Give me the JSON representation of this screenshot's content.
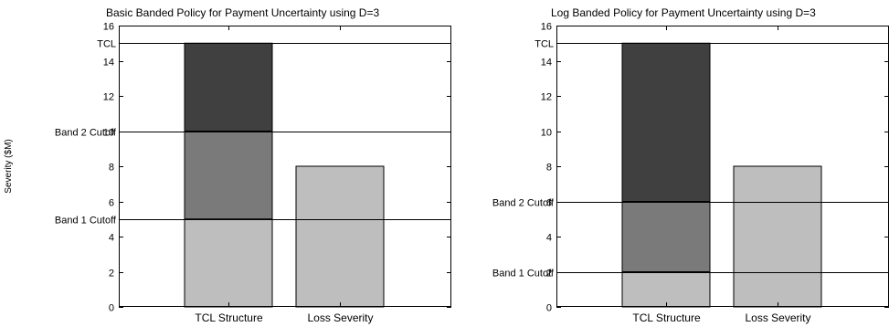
{
  "chart_data": [
    {
      "type": "bar",
      "stacked": true,
      "title": "Basic Banded Policy for Payment Uncertainty using D=3",
      "ylabel": "Severity ($M)",
      "xlabel": "",
      "ylim": [
        0,
        16
      ],
      "yticks": [
        0,
        2,
        4,
        6,
        8,
        10,
        12,
        14,
        16
      ],
      "categories": [
        "TCL Structure",
        "Loss Severity"
      ],
      "stacks": [
        {
          "category": "TCL Structure",
          "segments": [
            {
              "from": 0,
              "to": 5,
              "color": "#bebebe"
            },
            {
              "from": 5,
              "to": 10,
              "color": "#7a7a7a"
            },
            {
              "from": 10,
              "to": 15,
              "color": "#404040"
            }
          ]
        },
        {
          "category": "Loss Severity",
          "segments": [
            {
              "from": 0,
              "to": 8,
              "color": "#bebebe"
            }
          ]
        }
      ],
      "reference_lines": [
        {
          "label": "TCL",
          "value": 15
        },
        {
          "label": "Band 2 Cutoff",
          "value": 10
        },
        {
          "label": "Band 1 Cutoff",
          "value": 5
        }
      ],
      "grid": false,
      "legend": "none"
    },
    {
      "type": "bar",
      "stacked": true,
      "title": "Log Banded Policy for Payment Uncertainty using D=3",
      "ylabel": "",
      "xlabel": "",
      "ylim": [
        0,
        16
      ],
      "yticks": [
        0,
        2,
        4,
        6,
        8,
        10,
        12,
        14,
        16
      ],
      "categories": [
        "TCL Structure",
        "Loss Severity"
      ],
      "stacks": [
        {
          "category": "TCL Structure",
          "segments": [
            {
              "from": 0,
              "to": 2,
              "color": "#bebebe"
            },
            {
              "from": 2,
              "to": 6,
              "color": "#7a7a7a"
            },
            {
              "from": 6,
              "to": 15,
              "color": "#404040"
            }
          ]
        },
        {
          "category": "Loss Severity",
          "segments": [
            {
              "from": 0,
              "to": 8,
              "color": "#bebebe"
            }
          ]
        }
      ],
      "reference_lines": [
        {
          "label": "TCL",
          "value": 15
        },
        {
          "label": "Band 2 Cutoff",
          "value": 6
        },
        {
          "label": "Band 1 Cutoff",
          "value": 2
        }
      ],
      "grid": false,
      "legend": "none"
    }
  ]
}
